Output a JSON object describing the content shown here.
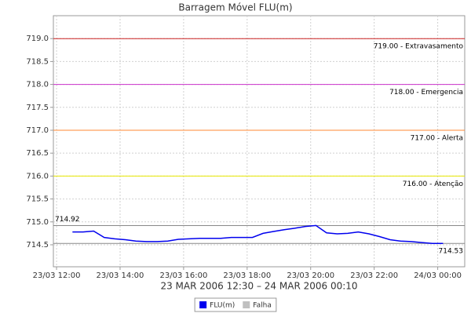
{
  "chart_data": {
    "type": "line",
    "title": "Barragem Móvel FLU(m)",
    "x_label": "23 MAR 2006 12:30 – 24 MAR 2006 00:10",
    "x": [
      "2006-03-23T12:30",
      "2006-03-23T12:50",
      "2006-03-23T13:10",
      "2006-03-23T13:30",
      "2006-03-23T13:50",
      "2006-03-23T14:10",
      "2006-03-23T14:30",
      "2006-03-23T14:50",
      "2006-03-23T15:10",
      "2006-03-23T15:30",
      "2006-03-23T15:50",
      "2006-03-23T16:10",
      "2006-03-23T16:30",
      "2006-03-23T16:50",
      "2006-03-23T17:10",
      "2006-03-23T17:30",
      "2006-03-23T17:50",
      "2006-03-23T18:10",
      "2006-03-23T18:30",
      "2006-03-23T18:50",
      "2006-03-23T19:10",
      "2006-03-23T19:30",
      "2006-03-23T19:50",
      "2006-03-23T20:10",
      "2006-03-23T20:30",
      "2006-03-23T20:50",
      "2006-03-23T21:10",
      "2006-03-23T21:30",
      "2006-03-23T21:50",
      "2006-03-23T22:10",
      "2006-03-23T22:30",
      "2006-03-23T22:50",
      "2006-03-23T23:10",
      "2006-03-23T23:30",
      "2006-03-23T23:50",
      "2006-03-24T00:10"
    ],
    "series": [
      {
        "name": "FLU(m)",
        "color": "#0000ee",
        "values": [
          714.78,
          714.78,
          714.8,
          714.66,
          714.63,
          714.61,
          714.58,
          714.57,
          714.57,
          714.58,
          714.62,
          714.63,
          714.64,
          714.64,
          714.64,
          714.66,
          714.66,
          714.66,
          714.75,
          714.79,
          714.83,
          714.86,
          714.9,
          714.92,
          714.76,
          714.74,
          714.75,
          714.78,
          714.74,
          714.68,
          714.61,
          714.58,
          714.57,
          714.55,
          714.53,
          714.53
        ]
      },
      {
        "name": "Falha",
        "color": "#c0c0c0",
        "values": [
          null,
          null,
          null,
          null,
          null,
          null,
          null,
          null,
          null,
          null,
          null,
          null,
          null,
          null,
          null,
          null,
          null,
          null,
          null,
          null,
          null,
          null,
          null,
          null,
          null,
          null,
          null,
          null,
          null,
          null,
          null,
          null,
          null,
          null,
          null,
          null
        ]
      }
    ],
    "xlim": [
      "2006-03-23T11:54",
      "2006-03-24T00:51"
    ],
    "xticks": [
      {
        "value": "2006-03-23T12:00",
        "label": "23/03 12:00"
      },
      {
        "value": "2006-03-23T14:00",
        "label": "23/03 14:00"
      },
      {
        "value": "2006-03-23T16:00",
        "label": "23/03 16:00"
      },
      {
        "value": "2006-03-23T18:00",
        "label": "23/03 18:00"
      },
      {
        "value": "2006-03-23T20:00",
        "label": "23/03 20:00"
      },
      {
        "value": "2006-03-23T22:00",
        "label": "23/03 22:00"
      },
      {
        "value": "2006-03-24T00:00",
        "label": "24/03 00:00"
      }
    ],
    "ylim": [
      714.02,
      719.5
    ],
    "yticks": [
      714.5,
      {
        "value": 715,
        "label": "715.0"
      },
      715.5,
      {
        "value": 716,
        "label": "716.0"
      },
      716.5,
      {
        "value": 717,
        "label": "717.0"
      },
      717.5,
      {
        "value": 718,
        "label": "718.0"
      },
      718.5,
      {
        "value": 719,
        "label": "719.0"
      }
    ],
    "grid": true,
    "thresholds": [
      {
        "value": 719,
        "label": "719.00 - Extravasamento",
        "color": "#cc2222"
      },
      {
        "value": 718,
        "label": "718.00 - Emergencia",
        "color": "#cc33cc"
      },
      {
        "value": 717,
        "label": "717.00 - Alerta",
        "color": "#ff8833"
      },
      {
        "value": 716,
        "label": "716.00 - Atenção",
        "color": "#e8e800"
      }
    ],
    "markers": [
      {
        "value": 714.92,
        "label": "714.92",
        "label_side": "left",
        "color": "#888888"
      },
      {
        "value": 714.53,
        "label": "714.53",
        "label_side": "right",
        "color": "#888888"
      }
    ],
    "legend": "bottom"
  }
}
